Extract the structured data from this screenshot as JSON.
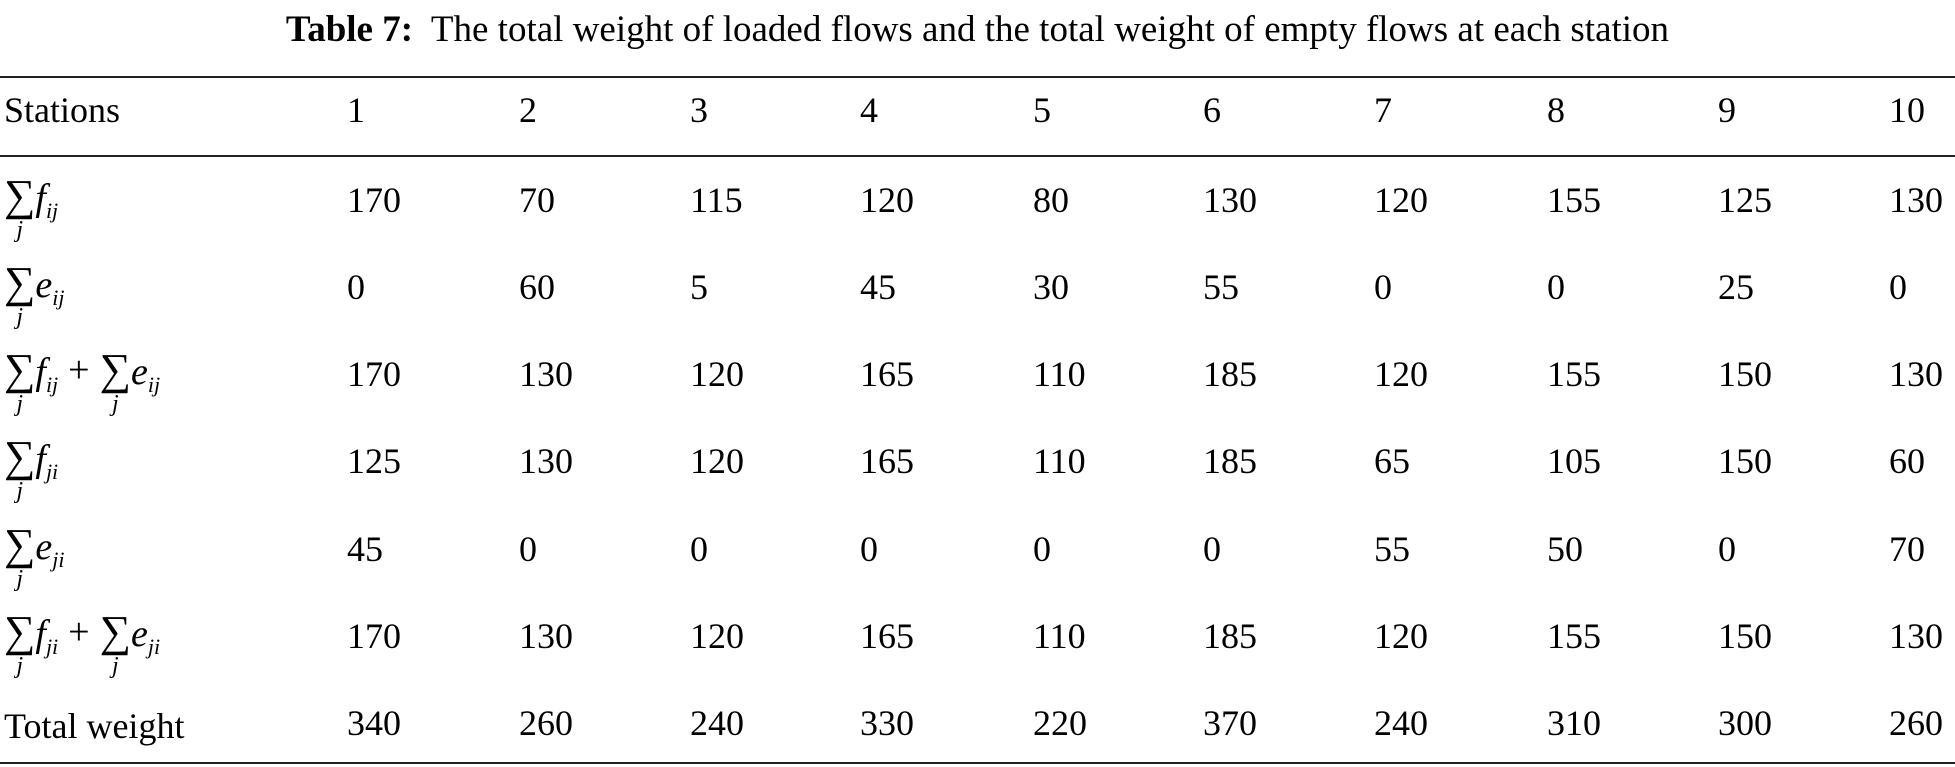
{
  "caption": {
    "label": "Table 7:",
    "text": "The total weight of loaded flows and the total weight of empty flows at each station"
  },
  "header": [
    "Stations",
    "1",
    "2",
    "3",
    "4",
    "5",
    "6",
    "7",
    "8",
    "9",
    "10"
  ],
  "rows": [
    {
      "label_terms": [
        {
          "sum": "∑",
          "index": "j",
          "var": "f",
          "sub": "ij"
        }
      ],
      "values": [
        "170",
        "70",
        "115",
        "120",
        "80",
        "130",
        "120",
        "155",
        "125",
        "130"
      ]
    },
    {
      "label_terms": [
        {
          "sum": "∑",
          "index": "j",
          "var": "e",
          "sub": "ij"
        }
      ],
      "values": [
        "0",
        "60",
        "5",
        "45",
        "30",
        "55",
        "0",
        "0",
        "25",
        "0"
      ]
    },
    {
      "label_terms": [
        {
          "sum": "∑",
          "index": "j",
          "var": "f",
          "sub": "ij"
        },
        {
          "sum": "∑",
          "index": "j",
          "var": "e",
          "sub": "ij"
        }
      ],
      "operator": "+",
      "values": [
        "170",
        "130",
        "120",
        "165",
        "110",
        "185",
        "120",
        "155",
        "150",
        "130"
      ]
    },
    {
      "label_terms": [
        {
          "sum": "∑",
          "index": "j",
          "var": "f",
          "sub": "ji"
        }
      ],
      "values": [
        "125",
        "130",
        "120",
        "165",
        "110",
        "185",
        "65",
        "105",
        "150",
        "60"
      ]
    },
    {
      "label_terms": [
        {
          "sum": "∑",
          "index": "j",
          "var": "e",
          "sub": "ji"
        }
      ],
      "values": [
        "45",
        "0",
        "0",
        "0",
        "0",
        "0",
        "55",
        "50",
        "0",
        "70"
      ]
    },
    {
      "label_terms": [
        {
          "sum": "∑",
          "index": "j",
          "var": "f",
          "sub": "ji"
        },
        {
          "sum": "∑",
          "index": "j",
          "var": "e",
          "sub": "ji"
        }
      ],
      "operator": "+",
      "values": [
        "170",
        "130",
        "120",
        "165",
        "110",
        "185",
        "120",
        "155",
        "150",
        "130"
      ]
    },
    {
      "label": "Total weight",
      "values": [
        "340",
        "260",
        "240",
        "330",
        "220",
        "370",
        "240",
        "310",
        "300",
        "260"
      ]
    }
  ]
}
